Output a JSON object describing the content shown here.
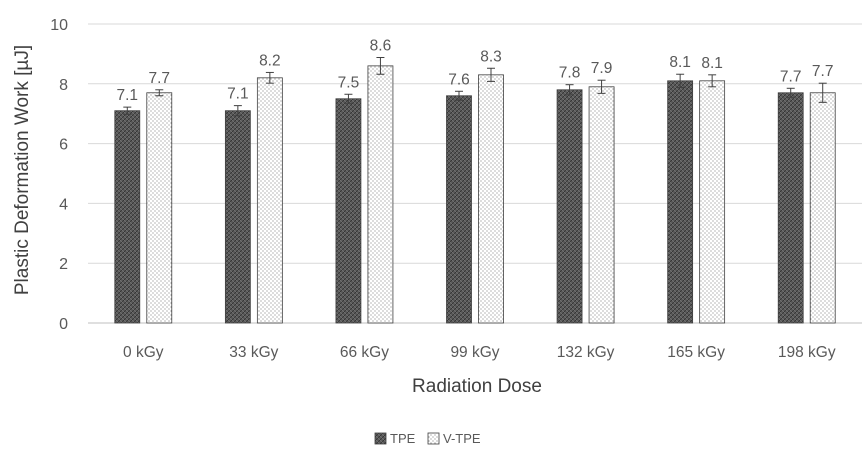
{
  "chart_data": {
    "type": "bar",
    "title": "",
    "xlabel": "Radiation Dose",
    "ylabel": "Plastic Deformation Work [µJ]",
    "categories": [
      "0 kGy",
      "33 kGy",
      "66 kGy",
      "99 kGy",
      "132 kGy",
      "165 kGy",
      "198 kGy"
    ],
    "ylim": [
      0,
      10
    ],
    "yticks": [
      0,
      2,
      4,
      6,
      8,
      10
    ],
    "grid": true,
    "legend_position": "bottom",
    "series": [
      {
        "name": "TPE",
        "values": [
          7.1,
          7.1,
          7.5,
          7.6,
          7.8,
          8.1,
          7.7
        ],
        "labels": [
          "7.1",
          "7.1",
          "7.5",
          "7.6",
          "7.8",
          "8.1",
          "7.7"
        ],
        "errors": [
          0.12,
          0.17,
          0.15,
          0.15,
          0.17,
          0.22,
          0.15
        ],
        "pattern": "crosshatch-dark",
        "color": "#5a5a5a"
      },
      {
        "name": "V-TPE",
        "values": [
          7.7,
          8.2,
          8.6,
          8.3,
          7.9,
          8.1,
          7.7
        ],
        "labels": [
          "7.7",
          "8.2",
          "8.6",
          "8.3",
          "7.9",
          "8.1",
          "7.7"
        ],
        "errors": [
          0.1,
          0.18,
          0.28,
          0.22,
          0.22,
          0.2,
          0.32
        ],
        "pattern": "dots-light",
        "color": "#ffffff"
      }
    ]
  }
}
